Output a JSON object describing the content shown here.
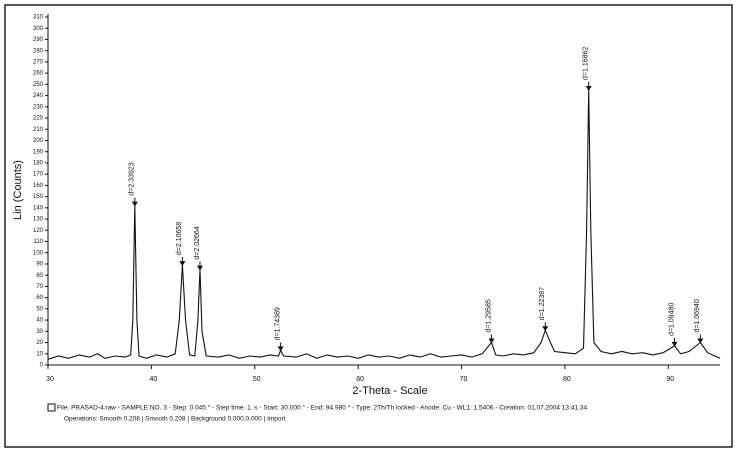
{
  "chart_data": {
    "type": "line",
    "xlabel": "2-Theta - Scale",
    "ylabel": "Lin (Counts)",
    "x": [
      30,
      31,
      32,
      33,
      34,
      34.8,
      35.5,
      36.5,
      37.5,
      38.0,
      38.2,
      38.4,
      38.6,
      38.8,
      39.5,
      40.5,
      41.5,
      42.3,
      42.7,
      43.0,
      43.3,
      43.7,
      44.2,
      44.5,
      44.7,
      44.9,
      45.3,
      46.5,
      47.5,
      48.5,
      49.5,
      50.5,
      51.5,
      52.3,
      52.5,
      52.8,
      54,
      55,
      56,
      57,
      58,
      59,
      60,
      61,
      62,
      63,
      64,
      65,
      66,
      67,
      68,
      69,
      70,
      71,
      72,
      72.9,
      73.3,
      74,
      75,
      76,
      77,
      77.7,
      78.1,
      78.5,
      79,
      80,
      81,
      81.8,
      82.1,
      82.3,
      82.5,
      82.8,
      83.5,
      84.5,
      85.5,
      86.5,
      87.5,
      88.5,
      89.5,
      90.6,
      91.2,
      92,
      93.1,
      93.8,
      94.5,
      95
    ],
    "values": [
      5,
      8,
      6,
      9,
      7,
      10,
      6,
      8,
      7,
      9,
      40,
      142,
      40,
      8,
      6,
      9,
      7,
      10,
      40,
      89,
      40,
      9,
      8,
      40,
      85,
      30,
      8,
      7,
      9,
      6,
      8,
      7,
      9,
      8,
      13,
      8,
      7,
      10,
      6,
      9,
      7,
      8,
      6,
      9,
      7,
      8,
      6,
      9,
      7,
      10,
      7,
      8,
      9,
      7,
      10,
      20,
      9,
      8,
      10,
      9,
      11,
      20,
      31,
      22,
      12,
      11,
      10,
      15,
      120,
      245,
      120,
      20,
      12,
      10,
      12,
      10,
      11,
      9,
      11,
      17,
      10,
      12,
      20,
      11,
      8,
      6
    ],
    "color": "#111111",
    "xlim": [
      30,
      95
    ],
    "ylim": [
      0,
      310
    ],
    "xticks": [
      30,
      40,
      50,
      60,
      70,
      80,
      90
    ],
    "yticks": [
      0,
      10,
      20,
      30,
      40,
      50,
      60,
      70,
      80,
      90,
      100,
      110,
      120,
      130,
      140,
      150,
      160,
      170,
      180,
      190,
      200,
      210,
      220,
      230,
      240,
      250,
      260,
      270,
      280,
      290,
      300,
      310
    ],
    "peaks": [
      {
        "label": "d=2.33923",
        "x": 38.4,
        "y": 142
      },
      {
        "label": "d=2.10658",
        "x": 43.0,
        "y": 89
      },
      {
        "label": "d=2.02664",
        "x": 44.7,
        "y": 85
      },
      {
        "label": "d=1.74389",
        "x": 52.5,
        "y": 13
      },
      {
        "label": "d=1.29585",
        "x": 72.9,
        "y": 20
      },
      {
        "label": "d=1.22387",
        "x": 78.1,
        "y": 31
      },
      {
        "label": "d=1.16862",
        "x": 82.3,
        "y": 245
      },
      {
        "label": "d=1.09480",
        "x": 90.6,
        "y": 17
      },
      {
        "label": "d=1.06940",
        "x": 93.1,
        "y": 20
      }
    ],
    "footer": [
      "File: PRASAD-4.raw - SAMPLE NO. 3 - Step: 0.045 ° - Step time: 1. s - Start: 30.000 ° - End: 94.980 ° - Type: 2Th/Th locked - Anode: Cu - WL1: 1.5406 - Creation: 01.07.2004 13:41:34",
      "Operations: Smooth 0.208 | Smooth 0.208 | Background 0.000,0.000 | Import"
    ]
  }
}
